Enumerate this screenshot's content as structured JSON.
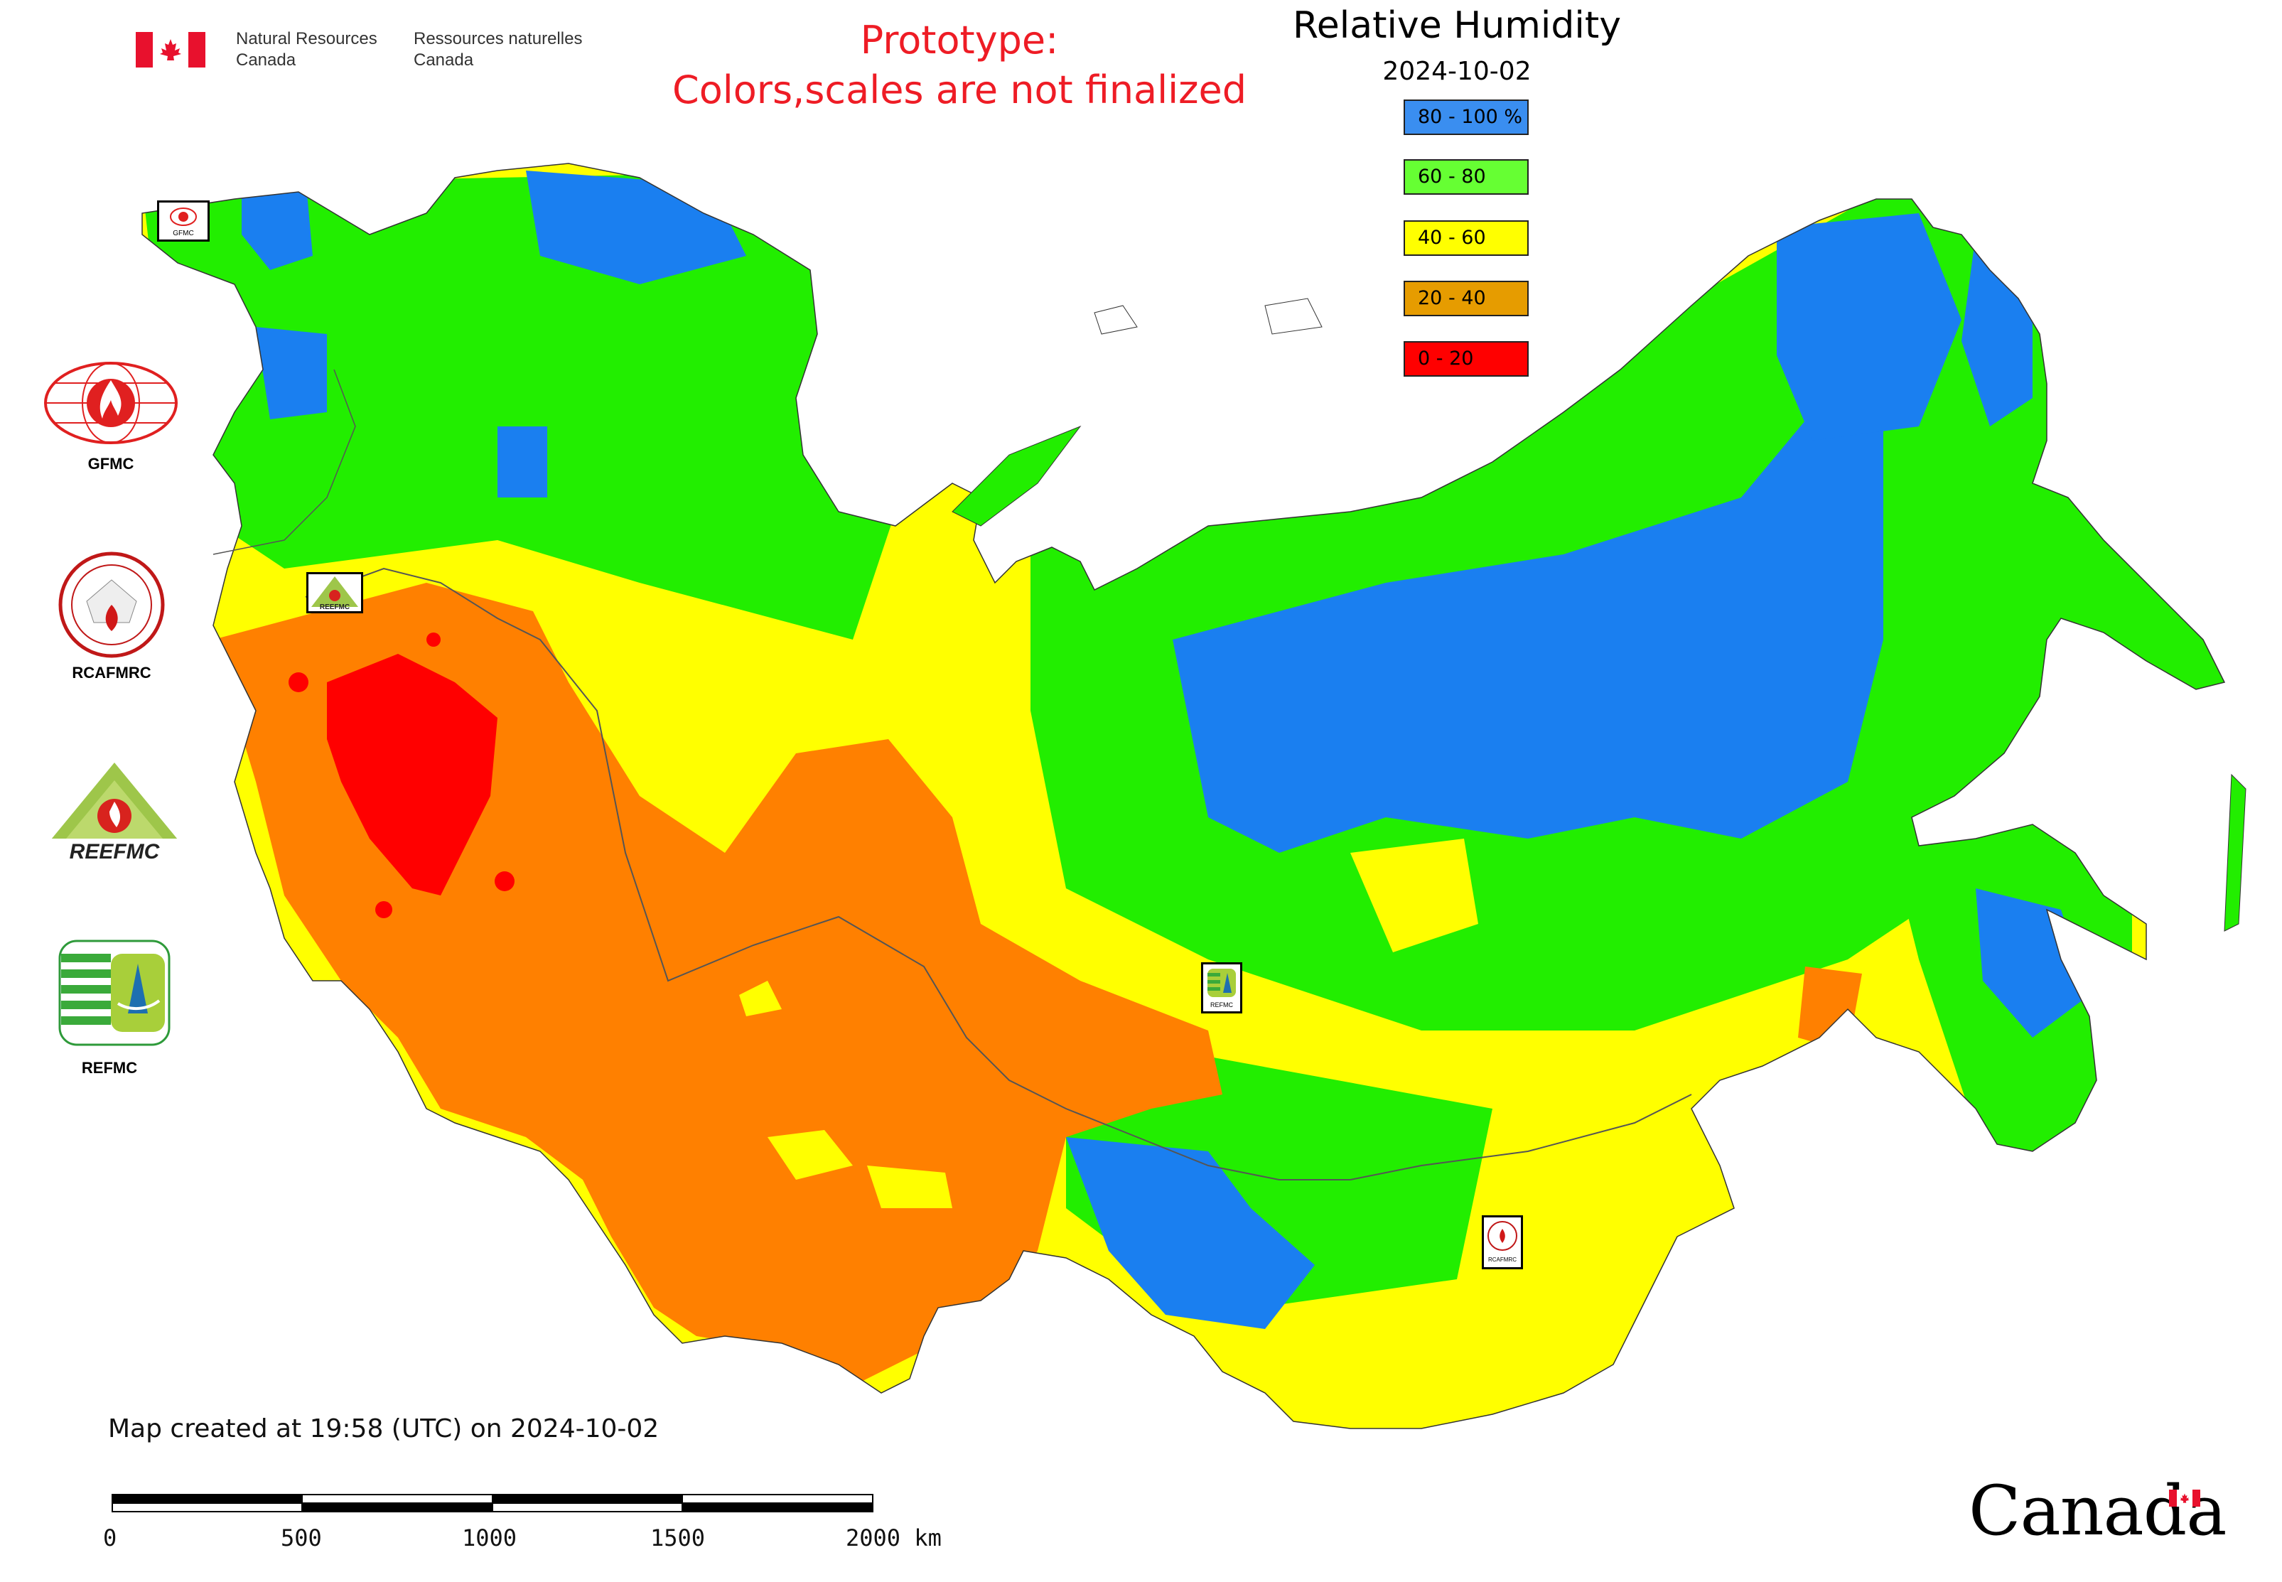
{
  "header": {
    "dept_en": "Natural Resources\nCanada",
    "dept_fr": "Ressources naturelles\nCanada",
    "prototype_line1": "Prototype:",
    "prototype_line2": "Colors,scales are not finalized"
  },
  "legend": {
    "title": "Relative Humidity",
    "date": "2024-10-02",
    "classes": [
      {
        "label": "80 - 100 %",
        "color": "#3a8ef0"
      },
      {
        "label": "60 - 80",
        "color": "#66ff33"
      },
      {
        "label": "40 - 60",
        "color": "#ffff00"
      },
      {
        "label": "20 - 40",
        "color": "#e69c00"
      },
      {
        "label": "0 - 20",
        "color": "#ff0000"
      }
    ]
  },
  "map_colors": {
    "blue": "#1a7ff0",
    "green": "#22ee00",
    "yellow": "#ffff00",
    "orange": "#ff8000",
    "red": "#ff0000",
    "border": "#555555"
  },
  "logos": [
    {
      "name": "GFMC",
      "label": "GFMC"
    },
    {
      "name": "RCAFMRC",
      "label": "RCAFMRC"
    },
    {
      "name": "REEFMC",
      "label": "REEFMC"
    },
    {
      "name": "REFMC",
      "label": "REFMC"
    }
  ],
  "map_badges": [
    {
      "label": "GFMC"
    },
    {
      "label": "REEFMC"
    },
    {
      "label": "REFMC"
    },
    {
      "label": "RCAFMRC"
    }
  ],
  "footer": {
    "created": "Map created at 19:58 (UTC) on 2024-10-02",
    "scale_ticks": [
      "0",
      "500",
      "1000",
      "1500",
      "2000 km"
    ],
    "wordmark": "Canada"
  }
}
